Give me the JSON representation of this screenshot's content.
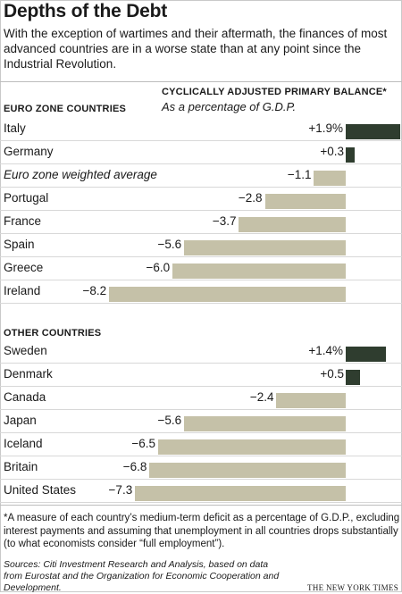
{
  "header": {
    "title": "Depths of the Debt",
    "intro": "With the exception of wartimes and their aftermath, the finances of most advanced countries are in a worse state than at any point since the Industrial Revolution."
  },
  "chart_data": {
    "type": "bar",
    "measure_title": "CYCLICALLY ADJUSTED PRIMARY BALANCE*",
    "measure_subtitle": "As a percentage of G.D.P.",
    "colors": {
      "positive": "#2f3d2f",
      "negative": "#c5c1a8"
    },
    "groups": [
      {
        "name": "EURO ZONE COUNTRIES",
        "categories": [
          "Italy",
          "Germany",
          "Euro zone weighted average",
          "Portugal",
          "France",
          "Spain",
          "Greece",
          "Ireland"
        ],
        "values": [
          1.9,
          0.3,
          -1.1,
          -2.8,
          -3.7,
          -5.6,
          -6.0,
          -8.2
        ],
        "labels": [
          "+1.9%",
          "+0.3",
          "−1.1",
          "−2.8",
          "−3.7",
          "−5.6",
          "−6.0",
          "−8.2"
        ]
      },
      {
        "name": "OTHER COUNTRIES",
        "categories": [
          "Sweden",
          "Denmark",
          "Canada",
          "Japan",
          "Iceland",
          "Britain",
          "United States"
        ],
        "values": [
          1.4,
          0.5,
          -2.4,
          -5.6,
          -6.5,
          -6.8,
          -7.3
        ],
        "labels": [
          "+1.4%",
          "+0.5",
          "−2.4",
          "−5.6",
          "−6.5",
          "−6.8",
          "−7.3"
        ]
      }
    ]
  },
  "footnote": "*A measure of each country’s medium-term deficit as a percentage of G.D.P., excluding interest payments and assuming that unemployment in all countries drops substantially (to what economists consider “full employment”).",
  "sources": "Sources: Citi Investment Research and Analysis, based on data from Eurostat and the Organization for Economic Cooperation and Development.",
  "credit": "THE NEW YORK TIMES"
}
